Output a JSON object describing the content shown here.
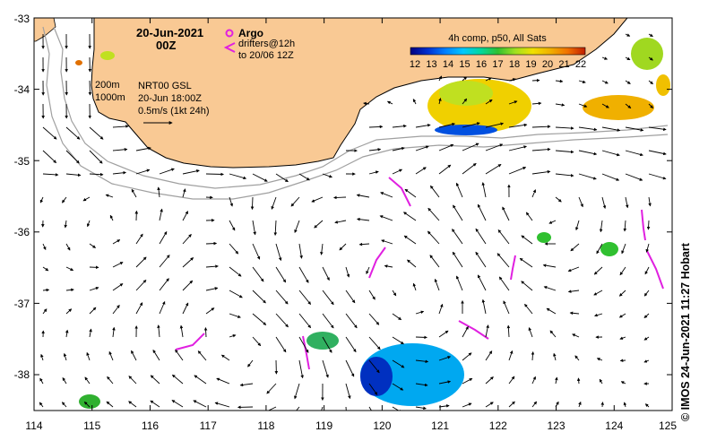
{
  "map": {
    "date": "20-Jun-2021",
    "hour": "00Z",
    "legend": {
      "argo_label": "Argo",
      "drifters_label": "drifters@12h",
      "drifters_sub": "to 20/06 12Z"
    },
    "contours": {
      "shallow": "200m",
      "deep": "1000m"
    },
    "product": {
      "name": "NRT00 GSL",
      "time": "20-Jun 18:00Z",
      "scale": "0.5m/s (1kt 24h)"
    },
    "sst": {
      "title": "4h comp, p50, All Sats",
      "ticks": [
        "12",
        "13",
        "14",
        "15",
        "16",
        "17",
        "18",
        "19",
        "20",
        "21",
        "22"
      ],
      "colors": [
        "#000080",
        "#0030d0",
        "#0080ff",
        "#00c8ff",
        "#00d8a0",
        "#30c030",
        "#a0e020",
        "#f0e000",
        "#f0b000",
        "#f07000",
        "#c02000"
      ]
    },
    "lon_ticks": [
      "114",
      "115",
      "116",
      "117",
      "118",
      "119",
      "120",
      "121",
      "122",
      "123",
      "124",
      "125"
    ],
    "lat_ticks": [
      "-33",
      "-34",
      "-35",
      "-36",
      "-37",
      "-38"
    ],
    "credit": "© IMOS 24-Jun-2021 11:27 Hobart",
    "colors": {
      "land": "#f9c994",
      "drifter": "#e020e0",
      "contour": "#a0a0a0"
    }
  }
}
